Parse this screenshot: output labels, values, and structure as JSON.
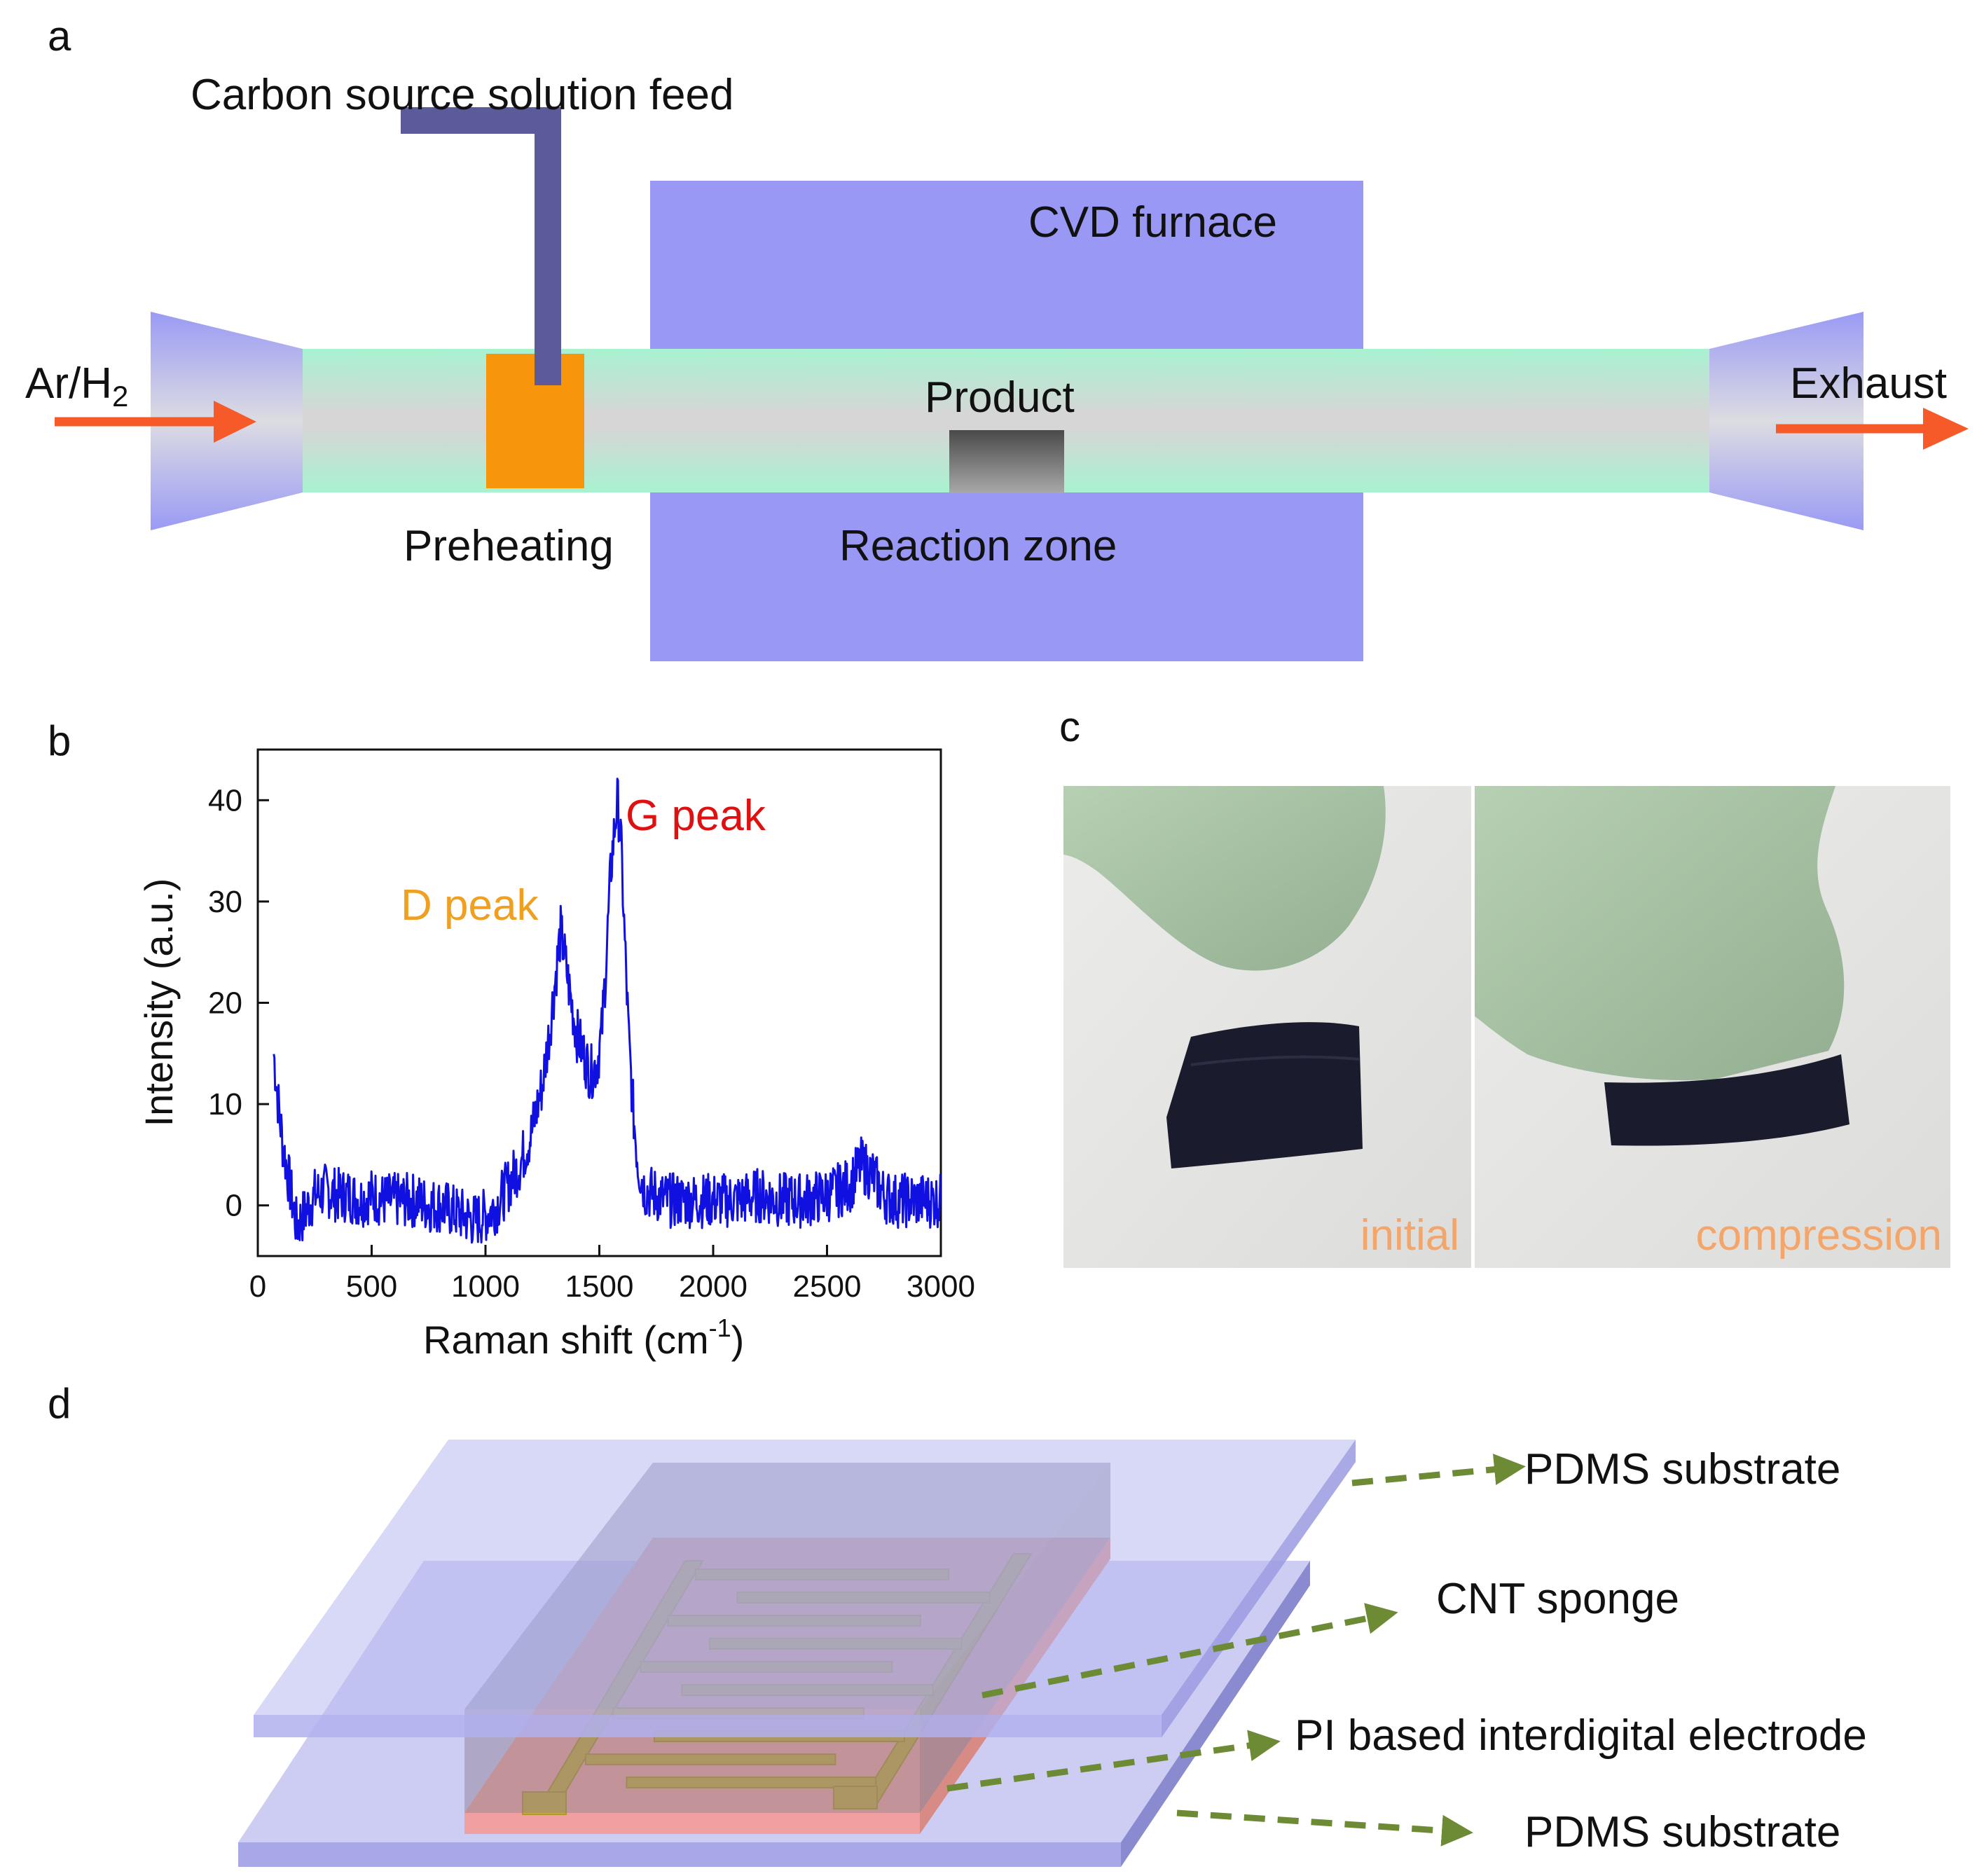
{
  "panel_a": {
    "letter": "a",
    "feed_label": "Carbon source solution feed",
    "furnace_label": "CVD furnace",
    "inlet_label_main": "Ar/H",
    "inlet_label_sub": "2",
    "exhaust_label": "Exhaust",
    "product_label": "Product",
    "preheating_label": "Preheating",
    "reaction_label": "Reaction zone",
    "colors": {
      "furnace": "#9999f5",
      "tube": "#a8f2d0",
      "preheater": "#f7960a",
      "feed_pipe": "#5b5b9a",
      "arrow": "#f55a28"
    }
  },
  "panel_b": {
    "letter": "b",
    "d_peak_label": "D peak",
    "g_peak_label": "G peak",
    "colors": {
      "line": "#1010e0",
      "d_peak": "#f0a020",
      "g_peak": "#e01010"
    }
  },
  "chart_data": {
    "type": "line",
    "xlabel_main": "Raman shift (cm",
    "xlabel_sup": "-1",
    "xlabel_close": ")",
    "ylabel": "Intensity (a.u.)",
    "xlim": [
      0,
      3000
    ],
    "ylim": [
      -5,
      45
    ],
    "x_ticks": [
      "0",
      "500",
      "1000",
      "1500",
      "2000",
      "2500",
      "3000"
    ],
    "y_ticks": [
      "0",
      "10",
      "20",
      "30",
      "40"
    ],
    "series": [
      {
        "x": [
          70,
          90,
          110,
          140,
          170,
          200,
          250,
          300,
          350,
          400,
          450,
          500,
          550,
          600,
          650,
          700,
          750,
          800,
          850,
          900,
          950,
          1000,
          1050,
          1100,
          1150,
          1200,
          1250,
          1280,
          1310,
          1330,
          1345,
          1370,
          1400,
          1430,
          1460,
          1490,
          1510,
          1530,
          1550,
          1570,
          1580,
          1595,
          1610,
          1630,
          1650,
          1670,
          1700,
          1750,
          1800,
          1900,
          2000,
          2100,
          2200,
          2300,
          2400,
          2500,
          2600,
          2650,
          2700,
          2750,
          2800,
          2850,
          2900,
          2950,
          3000
        ],
        "y": [
          15,
          10,
          6,
          2,
          -2,
          -1,
          1,
          1.5,
          1,
          1,
          0.5,
          1,
          0.5,
          0.5,
          0.5,
          0.5,
          0,
          0,
          -0.5,
          -1,
          -1.5,
          -1,
          0,
          2,
          4,
          7,
          12,
          17,
          23,
          27,
          25,
          21,
          17,
          15,
          13,
          14,
          17,
          24,
          33,
          38,
          40,
          36,
          27,
          16,
          9,
          4,
          1.5,
          1,
          0.5,
          0.5,
          0.5,
          0.5,
          1,
          0.5,
          0.5,
          1,
          2,
          4,
          3,
          1,
          0.5,
          0.5,
          0.5,
          0.5,
          0.5
        ]
      }
    ]
  },
  "panel_c": {
    "letter": "c",
    "initial_label": "initial",
    "compression_label": "compression",
    "colors": {
      "label": "#f4a56a",
      "glove": "#aec8aa",
      "sponge": "#1a1c2e",
      "background": "#e6e6e4"
    }
  },
  "panel_d": {
    "letter": "d",
    "top_pdms_label": "PDMS substrate",
    "cnt_label": "CNT sponge",
    "electrode_label": "PI based interdigital electrode",
    "bottom_pdms_label": "PDMS substrate",
    "colors": {
      "pdms": "#b8b8f0",
      "cnt": "#7a7a96",
      "pi": "#f0a8a0",
      "electrode": "#c8b040",
      "arrow": "#6d8a34"
    }
  }
}
